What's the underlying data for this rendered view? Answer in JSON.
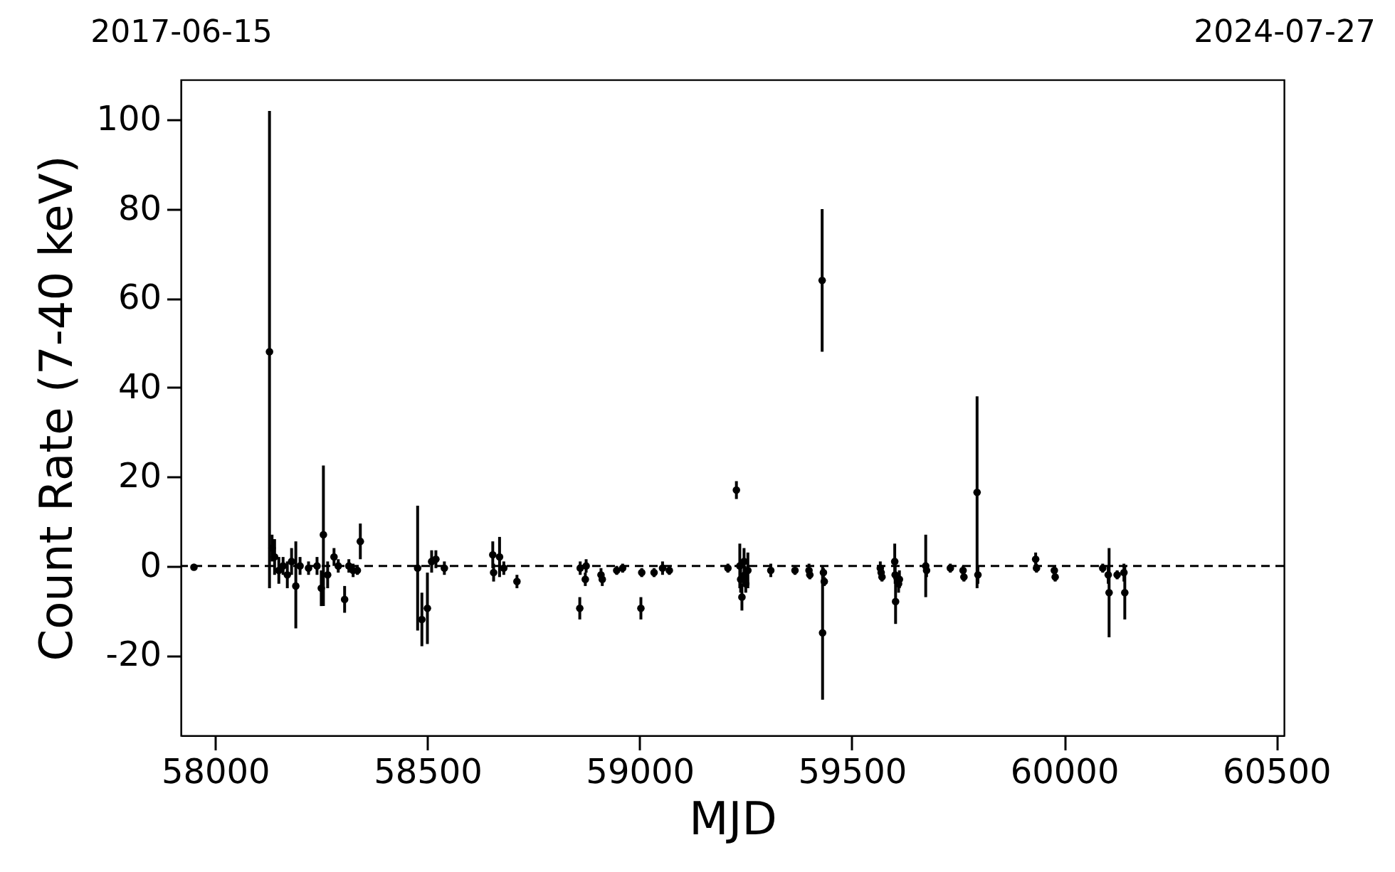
{
  "chart_data": {
    "type": "scatter",
    "xlabel": "MJD",
    "ylabel": "Count Rate (7-40 keV)",
    "xlim": [
      57919,
      60518
    ],
    "xticks": [
      58000,
      58500,
      59000,
      59500,
      60000,
      60500
    ],
    "ylim": [
      -38,
      109
    ],
    "yticks": [
      -20,
      0,
      20,
      40,
      60,
      80,
      100
    ],
    "x2lim": [
      "2017-06-15",
      "2024-07-27"
    ],
    "x2ticks": [
      "2017-06-15",
      "2024-07-27"
    ],
    "x": [
      57950,
      58128,
      58134,
      58140,
      58150,
      58160,
      58170,
      58180,
      58190,
      58200,
      58220,
      58240,
      58250,
      58255,
      58265,
      58280,
      58290,
      58305,
      58315,
      58325,
      58335,
      58342,
      58477,
      58487,
      58500,
      58510,
      58520,
      58540,
      58654,
      58656,
      58670,
      58680,
      58711,
      58859,
      58860,
      58872,
      58874,
      58909,
      58912,
      58946,
      58960,
      59003,
      59005,
      59034,
      59054,
      59070,
      59208,
      59228,
      59236,
      59238,
      59241,
      59246,
      59248,
      59250,
      59255,
      59309,
      59366,
      59399,
      59401,
      59430,
      59431,
      59433,
      59435,
      59567,
      59569,
      59571,
      59601,
      59602,
      59603,
      59610,
      59612,
      59674,
      59676,
      59732,
      59762,
      59764,
      59795,
      59797,
      59933,
      59935,
      59977,
      59979,
      60091,
      60104,
      60106,
      60125,
      60141,
      60143
    ],
    "series": [
      {
        "color": "#000000",
        "values": [
          -0.3,
          48,
          4,
          2,
          -1,
          0,
          -2,
          1,
          -4.5,
          0,
          -0.5,
          0,
          -5,
          7,
          -2,
          2,
          0,
          -7.5,
          0,
          -1,
          -1,
          5.5,
          -0.5,
          -12,
          -9.5,
          1,
          1.5,
          -0.5,
          2.5,
          -1.5,
          2,
          -0.5,
          -3.5,
          -9.5,
          -0.5,
          -3,
          0,
          -2,
          -3,
          -1,
          -0.5,
          -9.5,
          -1.5,
          -1.5,
          -0.5,
          -1,
          -0.5,
          17,
          0,
          -3,
          -7,
          1,
          -2,
          -4,
          -1,
          -1,
          -1,
          -1,
          -2,
          64,
          -15,
          -1.5,
          -3.5,
          -0.5,
          -1.5,
          -2.5,
          1,
          -2,
          -8,
          -4,
          -3,
          0,
          -1,
          -0.5,
          -1,
          -2.5,
          16.5,
          -2,
          1.5,
          -0.5,
          -1,
          -2.5,
          -0.5,
          -2,
          -6,
          -2,
          -1.5,
          -6
        ],
        "errors": [
          0.5,
          [
            -5,
            102
          ],
          3,
          4,
          3,
          2,
          3,
          3,
          [
            -14,
            5.5
          ],
          2,
          1.5,
          2,
          4,
          [
            -9,
            22.5
          ],
          3,
          2,
          1.5,
          3,
          1.5,
          1.5,
          1,
          4,
          14,
          6,
          8,
          2.5,
          2,
          1.5,
          3,
          2,
          4.5,
          1.5,
          1.5,
          2.5,
          1.5,
          1.5,
          1.5,
          1.5,
          1.5,
          1,
          1,
          2.5,
          1,
          1,
          1.5,
          1,
          1,
          2,
          5,
          3,
          3,
          3,
          2,
          2,
          4,
          1.5,
          1,
          1.5,
          1,
          16,
          15,
          1,
          1,
          1.5,
          1,
          1,
          4,
          2,
          5,
          2,
          2,
          7,
          1.5,
          1,
          1,
          1,
          [
            -5,
            38
          ],
          2,
          1.5,
          1,
          1,
          1,
          1,
          2,
          10,
          1,
          2,
          6
        ]
      }
    ],
    "ref_lines": [
      {
        "axis": "y",
        "value": 0,
        "color": "#000000",
        "line_style": "dashed"
      }
    ],
    "marker": "circle",
    "grid": false
  }
}
